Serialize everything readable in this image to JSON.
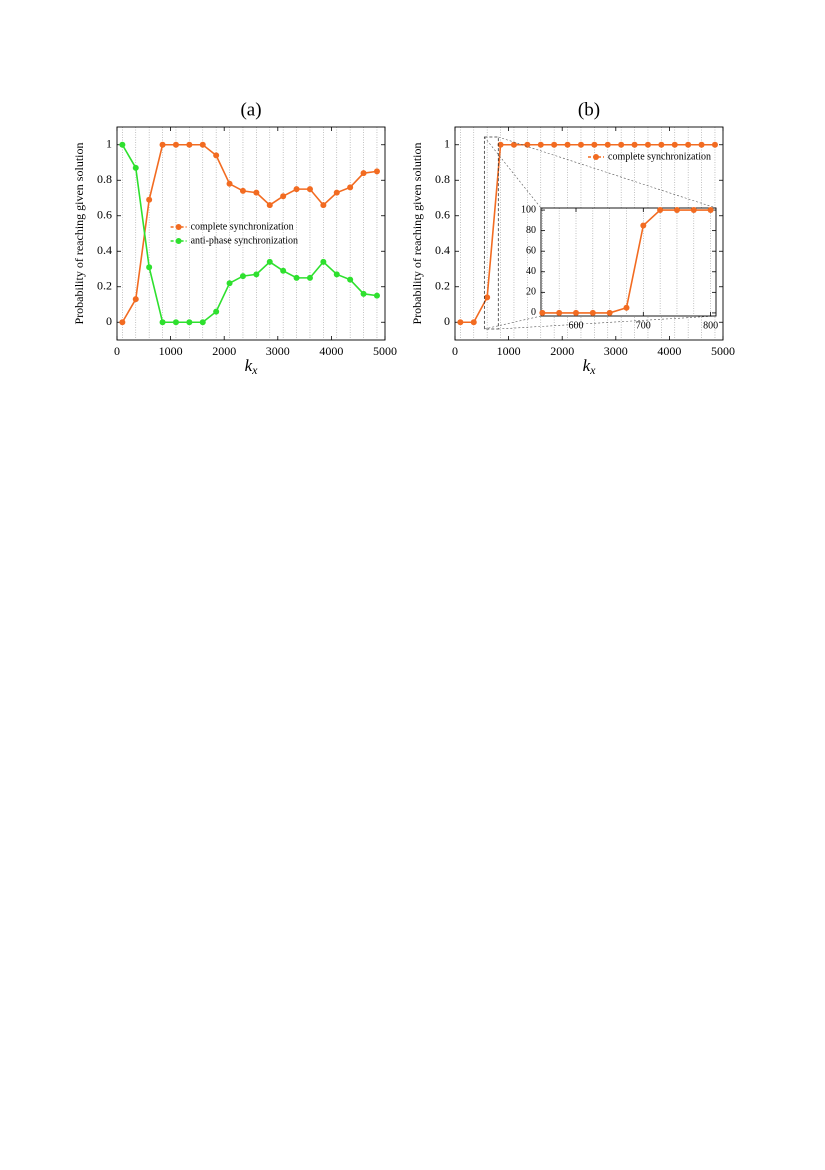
{
  "chart_data": [
    {
      "type": "line",
      "title": "(a)",
      "ylabel": "Probability of reaching given solution",
      "xlabel": [
        "k",
        "x"
      ],
      "x": [
        100,
        350,
        600,
        850,
        1100,
        1350,
        1600,
        1850,
        2100,
        2350,
        2600,
        2850,
        3100,
        3350,
        3600,
        3850,
        4100,
        4350,
        4600,
        4850
      ],
      "series": [
        {
          "name": "complete synchronization",
          "color": "#f26b21",
          "values": [
            0,
            0.13,
            0.69,
            1,
            1,
            1,
            1,
            0.94,
            0.78,
            0.74,
            0.73,
            0.66,
            0.71,
            0.75,
            0.75,
            0.66,
            0.73,
            0.76,
            0.84,
            0.85
          ]
        },
        {
          "name": "anti-phase synchronization",
          "color": "#2ee02e",
          "values": [
            1,
            0.87,
            0.31,
            0,
            0,
            0,
            0,
            0.06,
            0.22,
            0.26,
            0.27,
            0.34,
            0.29,
            0.25,
            0.25,
            0.34,
            0.27,
            0.24,
            0.16,
            0.15
          ]
        }
      ],
      "xlim": [
        0,
        5000
      ],
      "xticks": [
        0,
        1000,
        2000,
        3000,
        4000,
        5000
      ],
      "ylim": [
        -0.1,
        1.1
      ],
      "yticks": [
        0,
        0.2,
        0.4,
        0.6,
        0.8,
        1
      ],
      "grid": true,
      "legend": "center"
    },
    {
      "type": "line",
      "title": "(b)",
      "ylabel": "Probability of reaching given solution",
      "xlabel": [
        "k",
        "x"
      ],
      "x": [
        100,
        350,
        600,
        850,
        1100,
        1350,
        1600,
        1850,
        2100,
        2350,
        2600,
        2850,
        3100,
        3350,
        3600,
        3850,
        4100,
        4350,
        4600,
        4850
      ],
      "series": [
        {
          "name": "complete synchronization",
          "color": "#f26b21",
          "values": [
            0,
            0,
            0.14,
            1,
            1,
            1,
            1,
            1,
            1,
            1,
            1,
            1,
            1,
            1,
            1,
            1,
            1,
            1,
            1,
            1
          ]
        }
      ],
      "xlim": [
        0,
        5000
      ],
      "xticks": [
        0,
        1000,
        2000,
        3000,
        4000,
        5000
      ],
      "ylim": [
        -0.1,
        1.1
      ],
      "yticks": [
        0,
        0.2,
        0.4,
        0.6,
        0.8,
        1
      ],
      "grid": true,
      "legend": "upper right"
    },
    {
      "type": "line",
      "x": [
        550,
        575,
        600,
        625,
        650,
        675,
        700,
        725,
        750,
        775,
        800
      ],
      "series": [
        {
          "color": "#f26b21",
          "values": [
            0,
            0,
            0,
            0,
            0,
            5,
            85,
            100,
            100,
            100,
            100
          ]
        }
      ],
      "xlim": [
        548,
        808
      ],
      "xticks": [
        600,
        700,
        800
      ],
      "ylim": [
        -3,
        102
      ],
      "yticks": [
        0,
        20,
        40,
        60,
        80,
        100
      ],
      "grid": true
    }
  ]
}
